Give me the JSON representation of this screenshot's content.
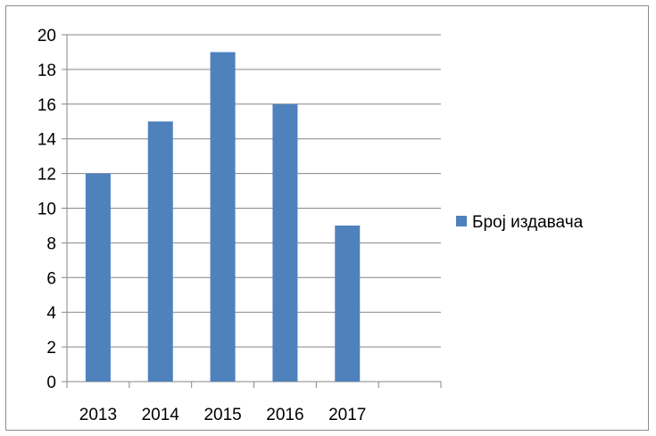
{
  "chart_data": {
    "type": "bar",
    "categories": [
      "2013",
      "2014",
      "2015",
      "2016",
      "2017",
      ""
    ],
    "series": [
      {
        "name": "Број издавача",
        "values": [
          12,
          15,
          19,
          16,
          9,
          null
        ],
        "color": "#4f81bd"
      }
    ],
    "ylim": [
      0,
      20
    ],
    "yticks": [
      0,
      2,
      4,
      6,
      8,
      10,
      12,
      14,
      16,
      18,
      20
    ],
    "grid": true,
    "legend_position": "right",
    "title": "",
    "xlabel": "",
    "ylabel": ""
  }
}
